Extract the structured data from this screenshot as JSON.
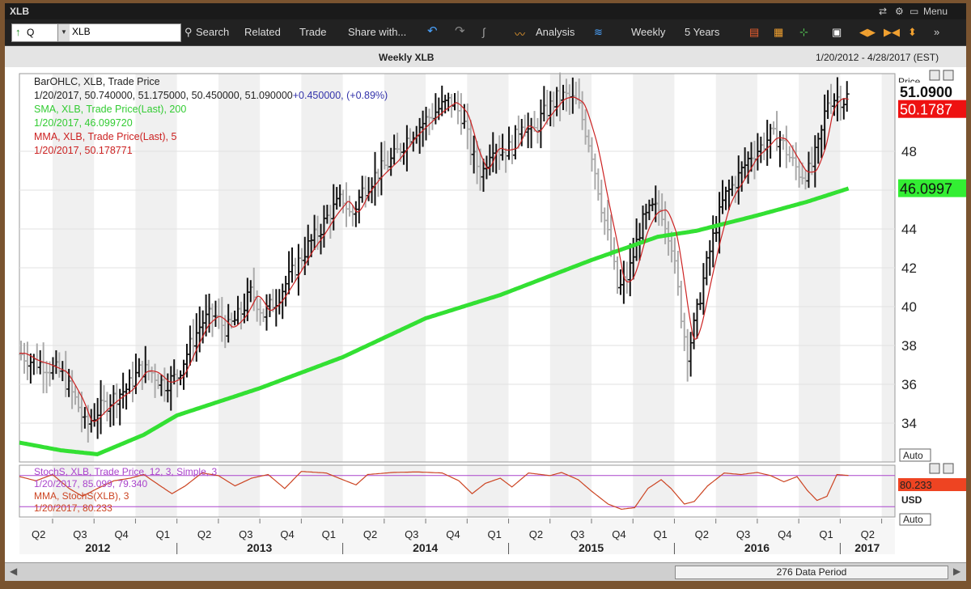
{
  "window": {
    "title": "XLB",
    "menu_label": "Menu"
  },
  "toolbar": {
    "symbol_type": "Q",
    "symbol": "XLB",
    "items": [
      "Search",
      "Related",
      "Trade",
      "Share with...",
      "Analysis",
      "Weekly",
      "5 Years"
    ]
  },
  "subheader": {
    "title": "Weekly XLB",
    "date_range": "1/20/2012 - 4/28/2017 (EST)"
  },
  "price_panel": {
    "legend": [
      {
        "text": "BarOHLC, XLB, Trade Price",
        "color": "#222222"
      },
      {
        "text": "1/20/2017, 50.740000, 51.175000, 50.450000, 51.090000",
        "color": "#222222",
        "extra": "+0.450000, (+0.89%)",
        "extra_color": "#3333aa"
      },
      {
        "text": "SMA, XLB, Trade Price(Last), 200",
        "color": "#33cc33"
      },
      {
        "text": "1/20/2017, 46.099720",
        "color": "#33cc33"
      },
      {
        "text": "MMA, XLB, Trade Price(Last), 5",
        "color": "#cc2222"
      },
      {
        "text": "1/20/2017, 50.178771",
        "color": "#cc2222"
      }
    ],
    "axis_header": "Price",
    "auto_label": "Auto",
    "price_tag": {
      "value": "51.0900",
      "color": "#111111"
    },
    "mma_tag": {
      "value": "50.1787",
      "color": "#ee1111"
    },
    "sma_tag": {
      "value": "46.0997",
      "color": "#33ee33"
    }
  },
  "stoch_panel": {
    "legend": [
      {
        "text": "StochS, XLB, Trade Price, 12, 3, Simple, 3",
        "color": "#aa44cc"
      },
      {
        "text": "1/20/2017, 85.099, 79.340",
        "color": "#aa44cc"
      },
      {
        "text": "MMA, StochS(XLB), 3",
        "color": "#cc4422"
      },
      {
        "text": "1/20/2017, 80.233",
        "color": "#cc4422"
      }
    ],
    "tag": {
      "value": "80.233",
      "color": "#ee4422"
    },
    "usd_label": "USD",
    "auto_label": "Auto"
  },
  "scroll": {
    "label": "276 Data Period"
  },
  "chart_data": {
    "type": "bar",
    "subtype": "weekly OHLC with SMA(200) and MMA(5), stochastic subpanel",
    "title": "Weekly XLB",
    "ylim": [
      32,
      52
    ],
    "yticks": [
      34,
      36,
      38,
      40,
      42,
      44,
      46,
      48
    ],
    "quarters": [
      "Q2",
      "Q3",
      "Q4",
      "Q1",
      "Q2",
      "Q3",
      "Q4",
      "Q1",
      "Q2",
      "Q3",
      "Q4",
      "Q1",
      "Q2",
      "Q3",
      "Q4",
      "Q1",
      "Q2",
      "Q3",
      "Q4",
      "Q1",
      "Q2"
    ],
    "years": [
      "2012",
      "2013",
      "2014",
      "2015",
      "2016",
      "2017"
    ],
    "x_start": 2012.05,
    "x_end": 2017.33,
    "close_keypoints": [
      [
        2012.05,
        37.6
      ],
      [
        2012.12,
        37.2
      ],
      [
        2012.2,
        37.0
      ],
      [
        2012.3,
        36.6
      ],
      [
        2012.4,
        35.0
      ],
      [
        2012.45,
        33.8
      ],
      [
        2012.52,
        34.6
      ],
      [
        2012.6,
        35.2
      ],
      [
        2012.7,
        35.8
      ],
      [
        2012.78,
        36.8
      ],
      [
        2012.85,
        36.6
      ],
      [
        2012.92,
        36.0
      ],
      [
        2013.0,
        36.4
      ],
      [
        2013.08,
        38.0
      ],
      [
        2013.15,
        39.2
      ],
      [
        2013.22,
        39.6
      ],
      [
        2013.3,
        38.8
      ],
      [
        2013.38,
        39.6
      ],
      [
        2013.45,
        40.8
      ],
      [
        2013.52,
        39.6
      ],
      [
        2013.6,
        40.4
      ],
      [
        2013.7,
        41.8
      ],
      [
        2013.78,
        43.0
      ],
      [
        2013.85,
        43.8
      ],
      [
        2013.92,
        44.8
      ],
      [
        2014.0,
        45.6
      ],
      [
        2014.05,
        44.6
      ],
      [
        2014.12,
        46.0
      ],
      [
        2014.2,
        46.8
      ],
      [
        2014.3,
        47.6
      ],
      [
        2014.4,
        48.8
      ],
      [
        2014.5,
        49.6
      ],
      [
        2014.58,
        50.2
      ],
      [
        2014.65,
        50.6
      ],
      [
        2014.72,
        49.8
      ],
      [
        2014.78,
        47.8
      ],
      [
        2014.84,
        46.8
      ],
      [
        2014.9,
        48.4
      ],
      [
        2014.95,
        48.0
      ],
      [
        2015.02,
        48.2
      ],
      [
        2015.08,
        49.6
      ],
      [
        2015.14,
        48.8
      ],
      [
        2015.2,
        49.8
      ],
      [
        2015.3,
        50.8
      ],
      [
        2015.36,
        50.8
      ],
      [
        2015.42,
        50.4
      ],
      [
        2015.5,
        48.0
      ],
      [
        2015.56,
        45.2
      ],
      [
        2015.62,
        42.8
      ],
      [
        2015.66,
        40.8
      ],
      [
        2015.72,
        41.6
      ],
      [
        2015.8,
        44.2
      ],
      [
        2015.86,
        45.0
      ],
      [
        2015.92,
        45.0
      ],
      [
        2015.98,
        43.4
      ],
      [
        2016.05,
        39.0
      ],
      [
        2016.08,
        37.6
      ],
      [
        2016.13,
        39.4
      ],
      [
        2016.18,
        41.6
      ],
      [
        2016.24,
        43.8
      ],
      [
        2016.3,
        45.6
      ],
      [
        2016.38,
        46.6
      ],
      [
        2016.46,
        47.8
      ],
      [
        2016.52,
        48.2
      ],
      [
        2016.58,
        48.8
      ],
      [
        2016.64,
        48.6
      ],
      [
        2016.7,
        47.6
      ],
      [
        2016.76,
        46.8
      ],
      [
        2016.82,
        47.0
      ],
      [
        2016.88,
        48.6
      ],
      [
        2016.92,
        50.6
      ],
      [
        2016.98,
        50.8
      ],
      [
        2017.03,
        50.6
      ],
      [
        2017.055,
        51.09
      ]
    ],
    "sma200_keypoints": [
      [
        2012.05,
        33.0
      ],
      [
        2012.3,
        32.6
      ],
      [
        2012.52,
        32.4
      ],
      [
        2012.8,
        33.4
      ],
      [
        2013.0,
        34.4
      ],
      [
        2013.5,
        35.8
      ],
      [
        2014.0,
        37.4
      ],
      [
        2014.5,
        39.4
      ],
      [
        2014.95,
        40.6
      ],
      [
        2015.5,
        42.4
      ],
      [
        2015.9,
        43.6
      ],
      [
        2016.13,
        43.9
      ],
      [
        2016.5,
        44.7
      ],
      [
        2016.8,
        45.4
      ],
      [
        2017.055,
        46.1
      ]
    ],
    "stoch_keypoints": [
      [
        2012.05,
        78
      ],
      [
        2012.15,
        70
      ],
      [
        2012.25,
        82
      ],
      [
        2012.35,
        55
      ],
      [
        2012.43,
        40
      ],
      [
        2012.52,
        55
      ],
      [
        2012.62,
        70
      ],
      [
        2012.72,
        75
      ],
      [
        2012.8,
        82
      ],
      [
        2012.9,
        60
      ],
      [
        2012.97,
        45
      ],
      [
        2013.05,
        60
      ],
      [
        2013.15,
        85
      ],
      [
        2013.25,
        80
      ],
      [
        2013.35,
        60
      ],
      [
        2013.45,
        75
      ],
      [
        2013.55,
        82
      ],
      [
        2013.65,
        55
      ],
      [
        2013.75,
        88
      ],
      [
        2013.9,
        85
      ],
      [
        2014.0,
        72
      ],
      [
        2014.08,
        62
      ],
      [
        2014.15,
        82
      ],
      [
        2014.3,
        86
      ],
      [
        2014.45,
        87
      ],
      [
        2014.6,
        85
      ],
      [
        2014.7,
        70
      ],
      [
        2014.78,
        45
      ],
      [
        2014.86,
        65
      ],
      [
        2014.95,
        75
      ],
      [
        2015.02,
        58
      ],
      [
        2015.12,
        85
      ],
      [
        2015.25,
        80
      ],
      [
        2015.32,
        86
      ],
      [
        2015.42,
        72
      ],
      [
        2015.5,
        50
      ],
      [
        2015.6,
        25
      ],
      [
        2015.68,
        15
      ],
      [
        2015.76,
        18
      ],
      [
        2015.84,
        55
      ],
      [
        2015.92,
        72
      ],
      [
        2015.98,
        55
      ],
      [
        2016.06,
        25
      ],
      [
        2016.12,
        30
      ],
      [
        2016.2,
        60
      ],
      [
        2016.3,
        85
      ],
      [
        2016.4,
        82
      ],
      [
        2016.5,
        86
      ],
      [
        2016.58,
        80
      ],
      [
        2016.66,
        68
      ],
      [
        2016.74,
        78
      ],
      [
        2016.8,
        52
      ],
      [
        2016.86,
        32
      ],
      [
        2016.92,
        40
      ],
      [
        2016.98,
        82
      ],
      [
        2017.055,
        80
      ]
    ],
    "stoch_levels": [
      80,
      20
    ]
  }
}
